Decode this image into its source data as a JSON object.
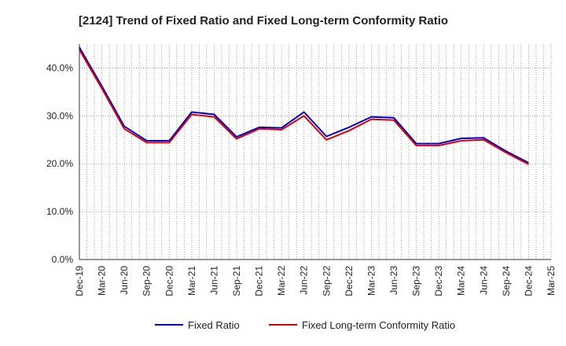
{
  "chart_data": {
    "type": "line",
    "title": "[2124]  Trend of Fixed Ratio and Fixed Long-term Conformity Ratio",
    "xlabel": "",
    "ylabel": "",
    "ylim": [
      0,
      45
    ],
    "yticks": [
      0,
      10,
      20,
      30,
      40
    ],
    "ytick_labels": [
      "0.0%",
      "10.0%",
      "20.0%",
      "30.0%",
      "40.0%"
    ],
    "x_tick_labels": [
      "Dec-19",
      "Mar-20",
      "Jun-20",
      "Sep-20",
      "Dec-20",
      "Mar-21",
      "Jun-21",
      "Sep-21",
      "Dec-21",
      "Mar-22",
      "Jun-22",
      "Sep-22",
      "Dec-22",
      "Mar-23",
      "Jun-23",
      "Sep-23",
      "Dec-23",
      "Mar-24",
      "Jun-24",
      "Sep-24",
      "Dec-24",
      "Mar-25"
    ],
    "x": [
      "Dec-19",
      "Mar-20",
      "Jun-20",
      "Sep-20",
      "Dec-20",
      "Mar-21",
      "Jun-21",
      "Sep-21",
      "Dec-21",
      "Mar-22",
      "Jun-22",
      "Sep-22",
      "Dec-22",
      "Mar-23",
      "Jun-23",
      "Sep-23",
      "Dec-23",
      "Mar-24",
      "Jun-24",
      "Sep-24",
      "Dec-24"
    ],
    "grid": true,
    "legend_position": "bottom",
    "series": [
      {
        "name": "Fixed Ratio",
        "color": "#0000cc",
        "values": [
          44.3,
          36.2,
          27.8,
          24.8,
          24.8,
          30.8,
          30.3,
          25.6,
          27.6,
          27.5,
          30.8,
          25.7,
          27.6,
          29.8,
          29.6,
          24.2,
          24.2,
          25.3,
          25.4,
          22.6,
          20.2
        ]
      },
      {
        "name": "Fixed Long-term Conformity Ratio",
        "color": "#dd0000",
        "values": [
          43.8,
          35.7,
          27.3,
          24.4,
          24.4,
          30.3,
          29.8,
          25.2,
          27.3,
          27.1,
          30.0,
          25.0,
          26.9,
          29.3,
          29.1,
          23.8,
          23.8,
          24.8,
          25.0,
          22.3,
          19.9
        ]
      }
    ]
  }
}
